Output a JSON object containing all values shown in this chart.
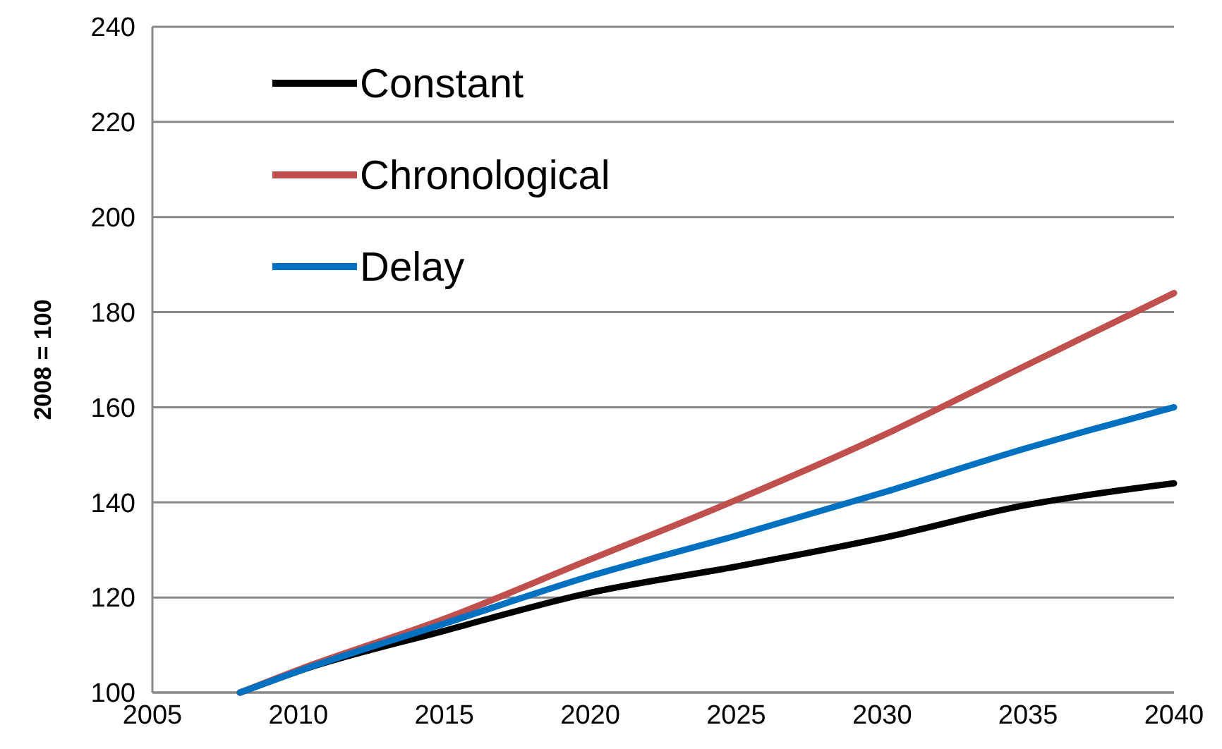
{
  "chart_data": {
    "type": "line",
    "ylabel": "2008 = 100",
    "xlim": [
      2005,
      2040
    ],
    "xticks": [
      2005,
      2010,
      2015,
      2020,
      2025,
      2030,
      2035,
      2040
    ],
    "ylim": [
      100,
      240
    ],
    "yticks": [
      100,
      120,
      140,
      160,
      180,
      200,
      220,
      240
    ],
    "grid": "y",
    "legend": "top left",
    "marker": "none",
    "line_style": "solid",
    "series": [
      {
        "name": "Constant",
        "color": "#000000",
        "x": [
          2008,
          2010,
          2015,
          2020,
          2025,
          2030,
          2035,
          2037,
          2040
        ],
        "values": [
          100,
          104.5,
          113,
          121,
          126.5,
          132.5,
          139.5,
          141.5,
          144
        ]
      },
      {
        "name": "Chronological",
        "color": "#c0504d",
        "x": [
          2008,
          2010,
          2015,
          2020,
          2025,
          2030,
          2035,
          2037,
          2040
        ],
        "values": [
          100,
          104.8,
          115.5,
          128,
          140.5,
          154,
          169,
          175,
          184
        ]
      },
      {
        "name": "Delay",
        "color": "#0070c0",
        "x": [
          2008,
          2010,
          2015,
          2020,
          2025,
          2030,
          2035,
          2037,
          2040
        ],
        "values": [
          100,
          104.5,
          114.5,
          124.5,
          133,
          142,
          151.5,
          155,
          160
        ]
      }
    ]
  }
}
